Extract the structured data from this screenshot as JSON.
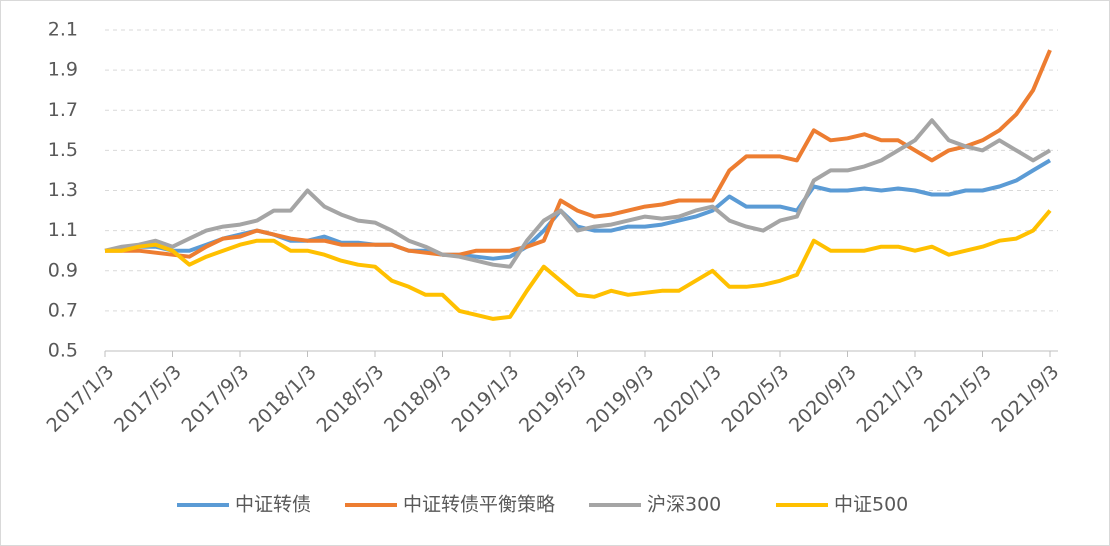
{
  "chart_data": {
    "type": "line",
    "x": [
      "2017/1/3",
      "2017/2/3",
      "2017/3/3",
      "2017/4/3",
      "2017/5/3",
      "2017/6/3",
      "2017/7/3",
      "2017/8/3",
      "2017/9/3",
      "2017/10/3",
      "2017/11/3",
      "2017/12/3",
      "2018/1/3",
      "2018/2/3",
      "2018/3/3",
      "2018/4/3",
      "2018/5/3",
      "2018/6/3",
      "2018/7/3",
      "2018/8/3",
      "2018/9/3",
      "2018/10/3",
      "2018/11/3",
      "2018/12/3",
      "2019/1/3",
      "2019/2/3",
      "2019/3/3",
      "2019/4/3",
      "2019/5/3",
      "2019/6/3",
      "2019/7/3",
      "2019/8/3",
      "2019/9/3",
      "2019/10/3",
      "2019/11/3",
      "2019/12/3",
      "2020/1/3",
      "2020/2/3",
      "2020/3/3",
      "2020/4/3",
      "2020/5/3",
      "2020/6/3",
      "2020/7/3",
      "2020/8/3",
      "2020/9/3",
      "2020/10/3",
      "2020/11/3",
      "2020/12/3",
      "2021/1/3",
      "2021/2/3",
      "2021/3/3",
      "2021/4/3",
      "2021/5/3",
      "2021/6/3",
      "2021/7/3",
      "2021/8/3",
      "2021/9/3"
    ],
    "xticks": [
      "2017/1/3",
      "2017/5/3",
      "2017/9/3",
      "2018/1/3",
      "2018/5/3",
      "2018/9/3",
      "2019/1/3",
      "2019/5/3",
      "2019/9/3",
      "2020/1/3",
      "2020/5/3",
      "2020/9/3",
      "2021/1/3",
      "2021/5/3",
      "2021/9/3"
    ],
    "ylim": [
      0.5,
      2.1
    ],
    "yticks": [
      0.5,
      0.7,
      0.9,
      1.1,
      1.3,
      1.5,
      1.7,
      1.9,
      2.1
    ],
    "grid": true,
    "legend": "bottom",
    "series": [
      {
        "name": "中证转债",
        "color": "#5b9bd5",
        "values": [
          1.0,
          1.01,
          1.02,
          1.02,
          1.0,
          1.0,
          1.03,
          1.06,
          1.08,
          1.1,
          1.08,
          1.05,
          1.05,
          1.07,
          1.04,
          1.04,
          1.03,
          1.03,
          1.0,
          1.0,
          0.98,
          0.98,
          0.97,
          0.96,
          0.97,
          1.02,
          1.1,
          1.2,
          1.12,
          1.1,
          1.1,
          1.12,
          1.12,
          1.13,
          1.15,
          1.17,
          1.2,
          1.27,
          1.22,
          1.22,
          1.22,
          1.2,
          1.32,
          1.3,
          1.3,
          1.31,
          1.3,
          1.31,
          1.3,
          1.28,
          1.28,
          1.3,
          1.3,
          1.32,
          1.35,
          1.4,
          1.45
        ]
      },
      {
        "name": "中证转债平衡策略",
        "color": "#ed7d31",
        "values": [
          1.0,
          1.0,
          1.0,
          0.99,
          0.98,
          0.97,
          1.02,
          1.06,
          1.07,
          1.1,
          1.08,
          1.06,
          1.05,
          1.05,
          1.03,
          1.03,
          1.03,
          1.03,
          1.0,
          0.99,
          0.98,
          0.98,
          1.0,
          1.0,
          1.0,
          1.02,
          1.05,
          1.25,
          1.2,
          1.17,
          1.18,
          1.2,
          1.22,
          1.23,
          1.25,
          1.25,
          1.25,
          1.4,
          1.47,
          1.47,
          1.47,
          1.45,
          1.6,
          1.55,
          1.56,
          1.58,
          1.55,
          1.55,
          1.5,
          1.45,
          1.5,
          1.52,
          1.55,
          1.6,
          1.68,
          1.8,
          2.0
        ]
      },
      {
        "name": "沪深300",
        "color": "#a5a5a5",
        "values": [
          1.0,
          1.02,
          1.03,
          1.05,
          1.02,
          1.06,
          1.1,
          1.12,
          1.13,
          1.15,
          1.2,
          1.2,
          1.3,
          1.22,
          1.18,
          1.15,
          1.14,
          1.1,
          1.05,
          1.02,
          0.98,
          0.97,
          0.95,
          0.93,
          0.92,
          1.05,
          1.15,
          1.2,
          1.1,
          1.12,
          1.13,
          1.15,
          1.17,
          1.16,
          1.17,
          1.2,
          1.22,
          1.15,
          1.12,
          1.1,
          1.15,
          1.17,
          1.35,
          1.4,
          1.4,
          1.42,
          1.45,
          1.5,
          1.55,
          1.65,
          1.55,
          1.52,
          1.5,
          1.55,
          1.5,
          1.45,
          1.5
        ]
      },
      {
        "name": "中证500",
        "color": "#ffc000",
        "values": [
          1.0,
          1.0,
          1.02,
          1.03,
          1.0,
          0.93,
          0.97,
          1.0,
          1.03,
          1.05,
          1.05,
          1.0,
          1.0,
          0.98,
          0.95,
          0.93,
          0.92,
          0.85,
          0.82,
          0.78,
          0.78,
          0.7,
          0.68,
          0.66,
          0.67,
          0.8,
          0.92,
          0.85,
          0.78,
          0.77,
          0.8,
          0.78,
          0.79,
          0.8,
          0.8,
          0.85,
          0.9,
          0.82,
          0.82,
          0.83,
          0.85,
          0.88,
          1.05,
          1.0,
          1.0,
          1.0,
          1.02,
          1.02,
          1.0,
          1.02,
          0.98,
          1.0,
          1.02,
          1.05,
          1.06,
          1.1,
          1.2
        ]
      }
    ]
  }
}
